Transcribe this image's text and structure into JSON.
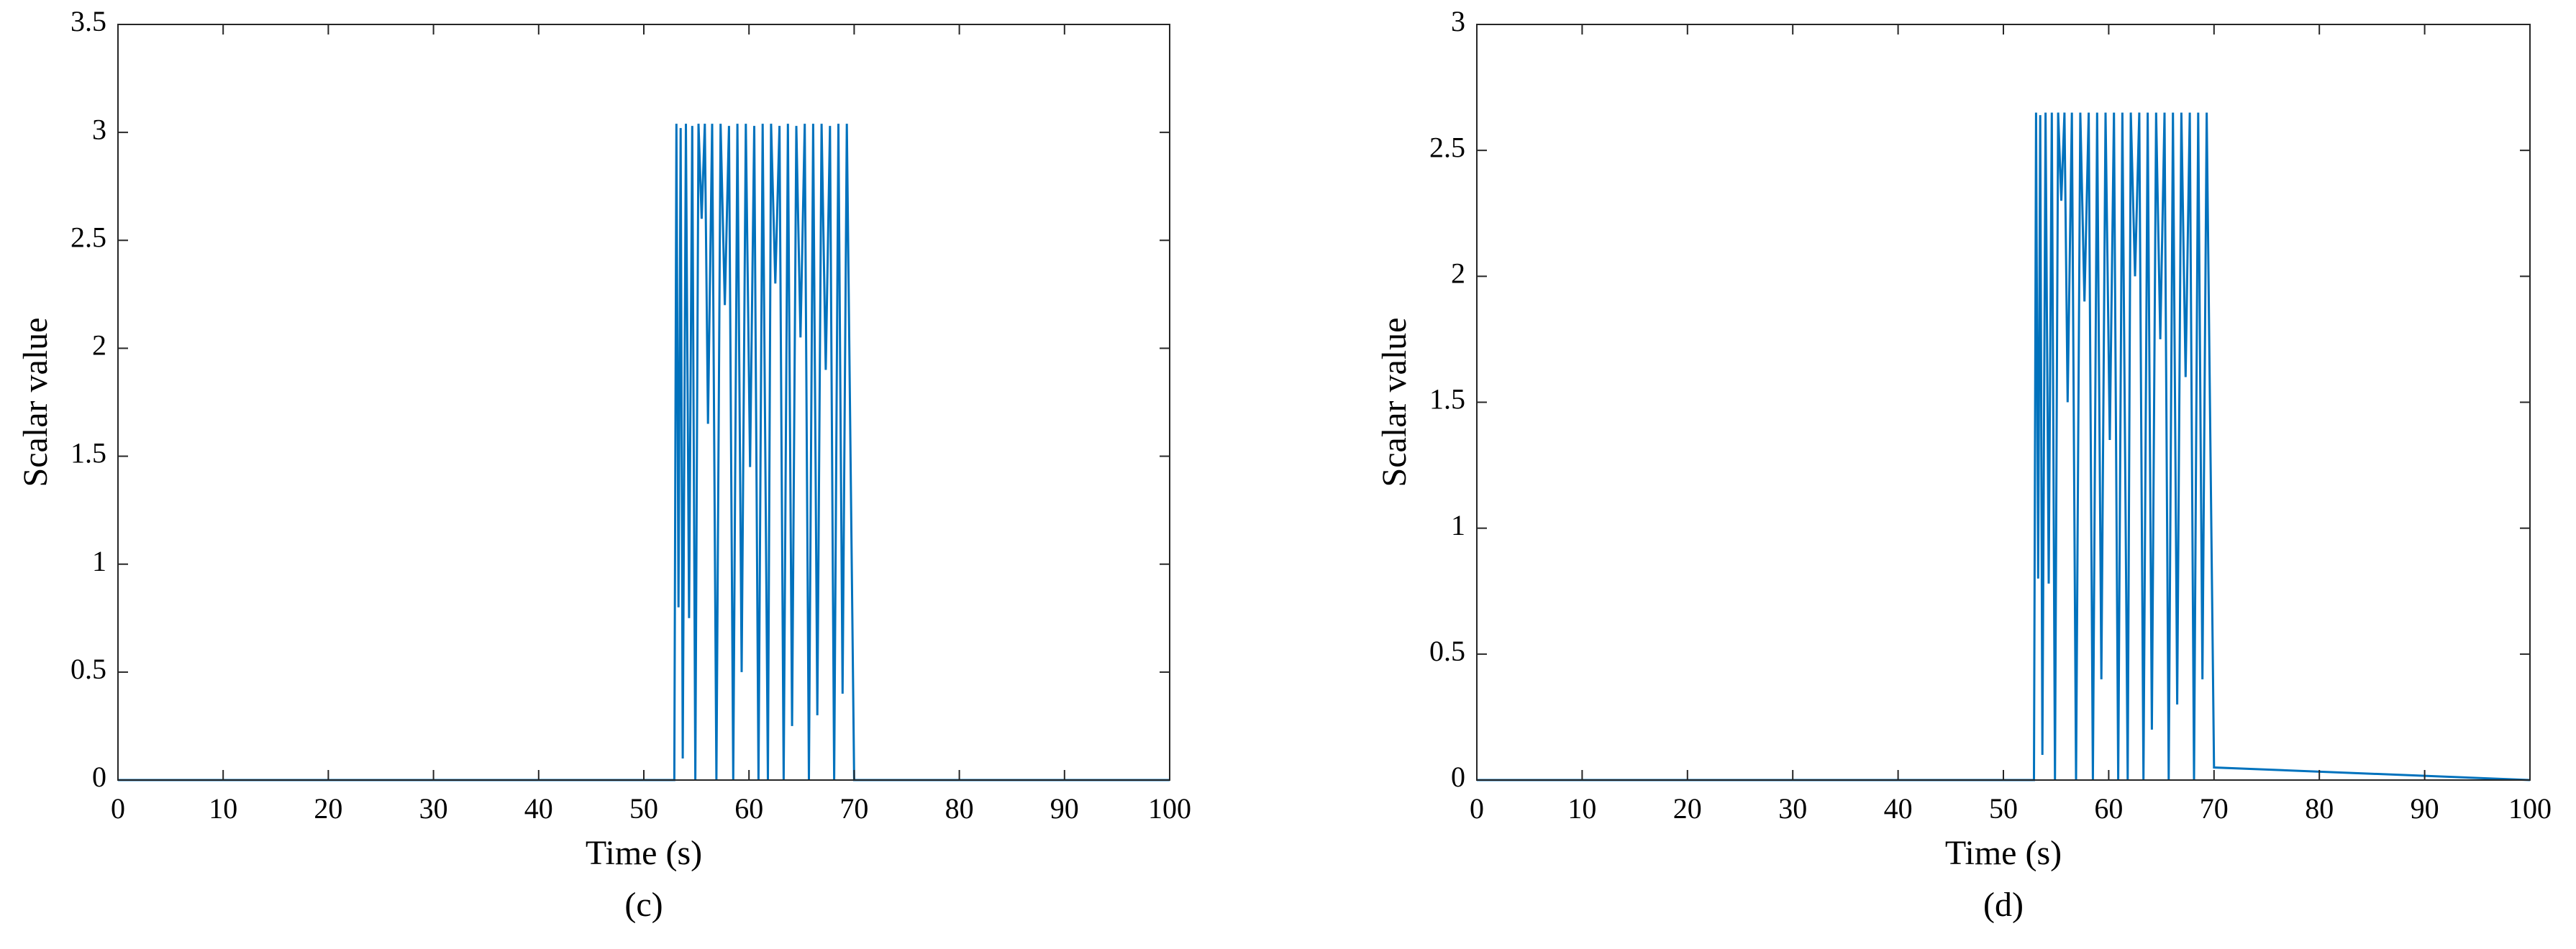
{
  "chart_data": [
    {
      "type": "line",
      "x_label": "Time (s)",
      "y_label": "Scalar value",
      "caption": "(c)",
      "color": "#0072bd",
      "xlim": [
        0,
        100
      ],
      "xticks": [
        0,
        10,
        20,
        30,
        40,
        50,
        60,
        70,
        80,
        90,
        100
      ],
      "ylim": [
        0,
        3.5
      ],
      "yticks": [
        0,
        0.5,
        1,
        1.5,
        2,
        2.5,
        3,
        3.5
      ],
      "x": [
        0,
        52.9,
        53.1,
        53.3,
        53.5,
        53.7,
        54.0,
        54.3,
        54.6,
        54.9,
        55.2,
        55.5,
        55.8,
        56.1,
        56.5,
        56.9,
        57.3,
        57.7,
        58.1,
        58.5,
        58.9,
        59.3,
        59.7,
        60.1,
        60.5,
        60.9,
        61.3,
        61.8,
        62.1,
        62.5,
        62.9,
        63.3,
        63.7,
        64.1,
        64.5,
        64.9,
        65.3,
        65.7,
        66.1,
        66.5,
        66.9,
        67.3,
        67.7,
        68.1,
        68.5,
        68.9,
        69.3,
        70,
        100
      ],
      "values": [
        0,
        0,
        3.04,
        0.8,
        3.02,
        0.1,
        3.04,
        0.75,
        3.03,
        0,
        3.04,
        2.6,
        3.04,
        1.65,
        3.04,
        0,
        3.04,
        2.2,
        3.03,
        0,
        3.04,
        0.5,
        3.04,
        1.45,
        3.03,
        0,
        3.04,
        0,
        3.04,
        2.3,
        3.03,
        0,
        3.04,
        0.25,
        3.03,
        2.05,
        3.04,
        0,
        3.04,
        0.3,
        3.04,
        1.9,
        3.03,
        0,
        3.04,
        0.4,
        3.04,
        0,
        0
      ]
    },
    {
      "type": "line",
      "x_label": "Time (s)",
      "y_label": "Scalar value",
      "caption": "(d)",
      "color": "#0072bd",
      "xlim": [
        0,
        100
      ],
      "xticks": [
        0,
        10,
        20,
        30,
        40,
        50,
        60,
        70,
        80,
        90,
        100
      ],
      "ylim": [
        0,
        3
      ],
      "yticks": [
        0,
        0.5,
        1,
        1.5,
        2,
        2.5,
        3
      ],
      "x": [
        0,
        52.9,
        53.1,
        53.3,
        53.5,
        53.7,
        54.0,
        54.3,
        54.6,
        54.9,
        55.2,
        55.5,
        55.8,
        56.1,
        56.5,
        56.9,
        57.3,
        57.7,
        58.1,
        58.5,
        58.9,
        59.3,
        59.7,
        60.1,
        60.5,
        60.9,
        61.3,
        61.8,
        62.1,
        62.5,
        62.9,
        63.3,
        63.7,
        64.1,
        64.5,
        64.9,
        65.3,
        65.7,
        66.1,
        66.5,
        66.9,
        67.3,
        67.7,
        68.1,
        68.5,
        68.9,
        69.3,
        70,
        100
      ],
      "values": [
        0,
        0,
        2.65,
        0.8,
        2.64,
        0.1,
        2.65,
        0.78,
        2.65,
        0,
        2.65,
        2.3,
        2.65,
        1.5,
        2.65,
        0,
        2.65,
        1.9,
        2.65,
        0,
        2.65,
        0.4,
        2.65,
        1.35,
        2.65,
        0,
        2.65,
        0,
        2.65,
        2.0,
        2.65,
        0,
        2.65,
        0.2,
        2.65,
        1.75,
        2.65,
        0,
        2.65,
        0.3,
        2.65,
        1.6,
        2.65,
        0,
        2.65,
        0.4,
        2.65,
        0.05,
        0
      ]
    }
  ]
}
